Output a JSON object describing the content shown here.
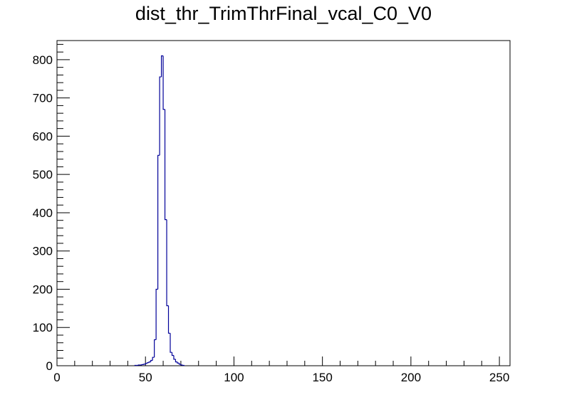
{
  "chart_data": {
    "type": "histogram",
    "title": "dist_thr_TrimThrFinal_vcal_C0_V0",
    "xlabel": "",
    "ylabel": "",
    "xlim": [
      0,
      256
    ],
    "ylim": [
      0,
      850
    ],
    "bin_width": 1,
    "x_ticks": [
      0,
      50,
      100,
      150,
      200,
      250
    ],
    "y_ticks": [
      0,
      100,
      200,
      300,
      400,
      500,
      600,
      700,
      800
    ],
    "line_color": "#000099",
    "bins": [
      {
        "x": 44,
        "y": 1
      },
      {
        "x": 45,
        "y": 1
      },
      {
        "x": 46,
        "y": 2
      },
      {
        "x": 47,
        "y": 2
      },
      {
        "x": 48,
        "y": 3
      },
      {
        "x": 49,
        "y": 4
      },
      {
        "x": 50,
        "y": 6
      },
      {
        "x": 51,
        "y": 8
      },
      {
        "x": 52,
        "y": 10
      },
      {
        "x": 53,
        "y": 14
      },
      {
        "x": 54,
        "y": 22
      },
      {
        "x": 55,
        "y": 68
      },
      {
        "x": 56,
        "y": 200
      },
      {
        "x": 57,
        "y": 550
      },
      {
        "x": 58,
        "y": 755
      },
      {
        "x": 59,
        "y": 810
      },
      {
        "x": 60,
        "y": 670
      },
      {
        "x": 61,
        "y": 382
      },
      {
        "x": 62,
        "y": 157
      },
      {
        "x": 63,
        "y": 85
      },
      {
        "x": 64,
        "y": 35
      },
      {
        "x": 65,
        "y": 27
      },
      {
        "x": 66,
        "y": 17
      },
      {
        "x": 67,
        "y": 10
      },
      {
        "x": 68,
        "y": 7
      },
      {
        "x": 69,
        "y": 4
      },
      {
        "x": 70,
        "y": 2
      },
      {
        "x": 71,
        "y": 1
      }
    ]
  }
}
